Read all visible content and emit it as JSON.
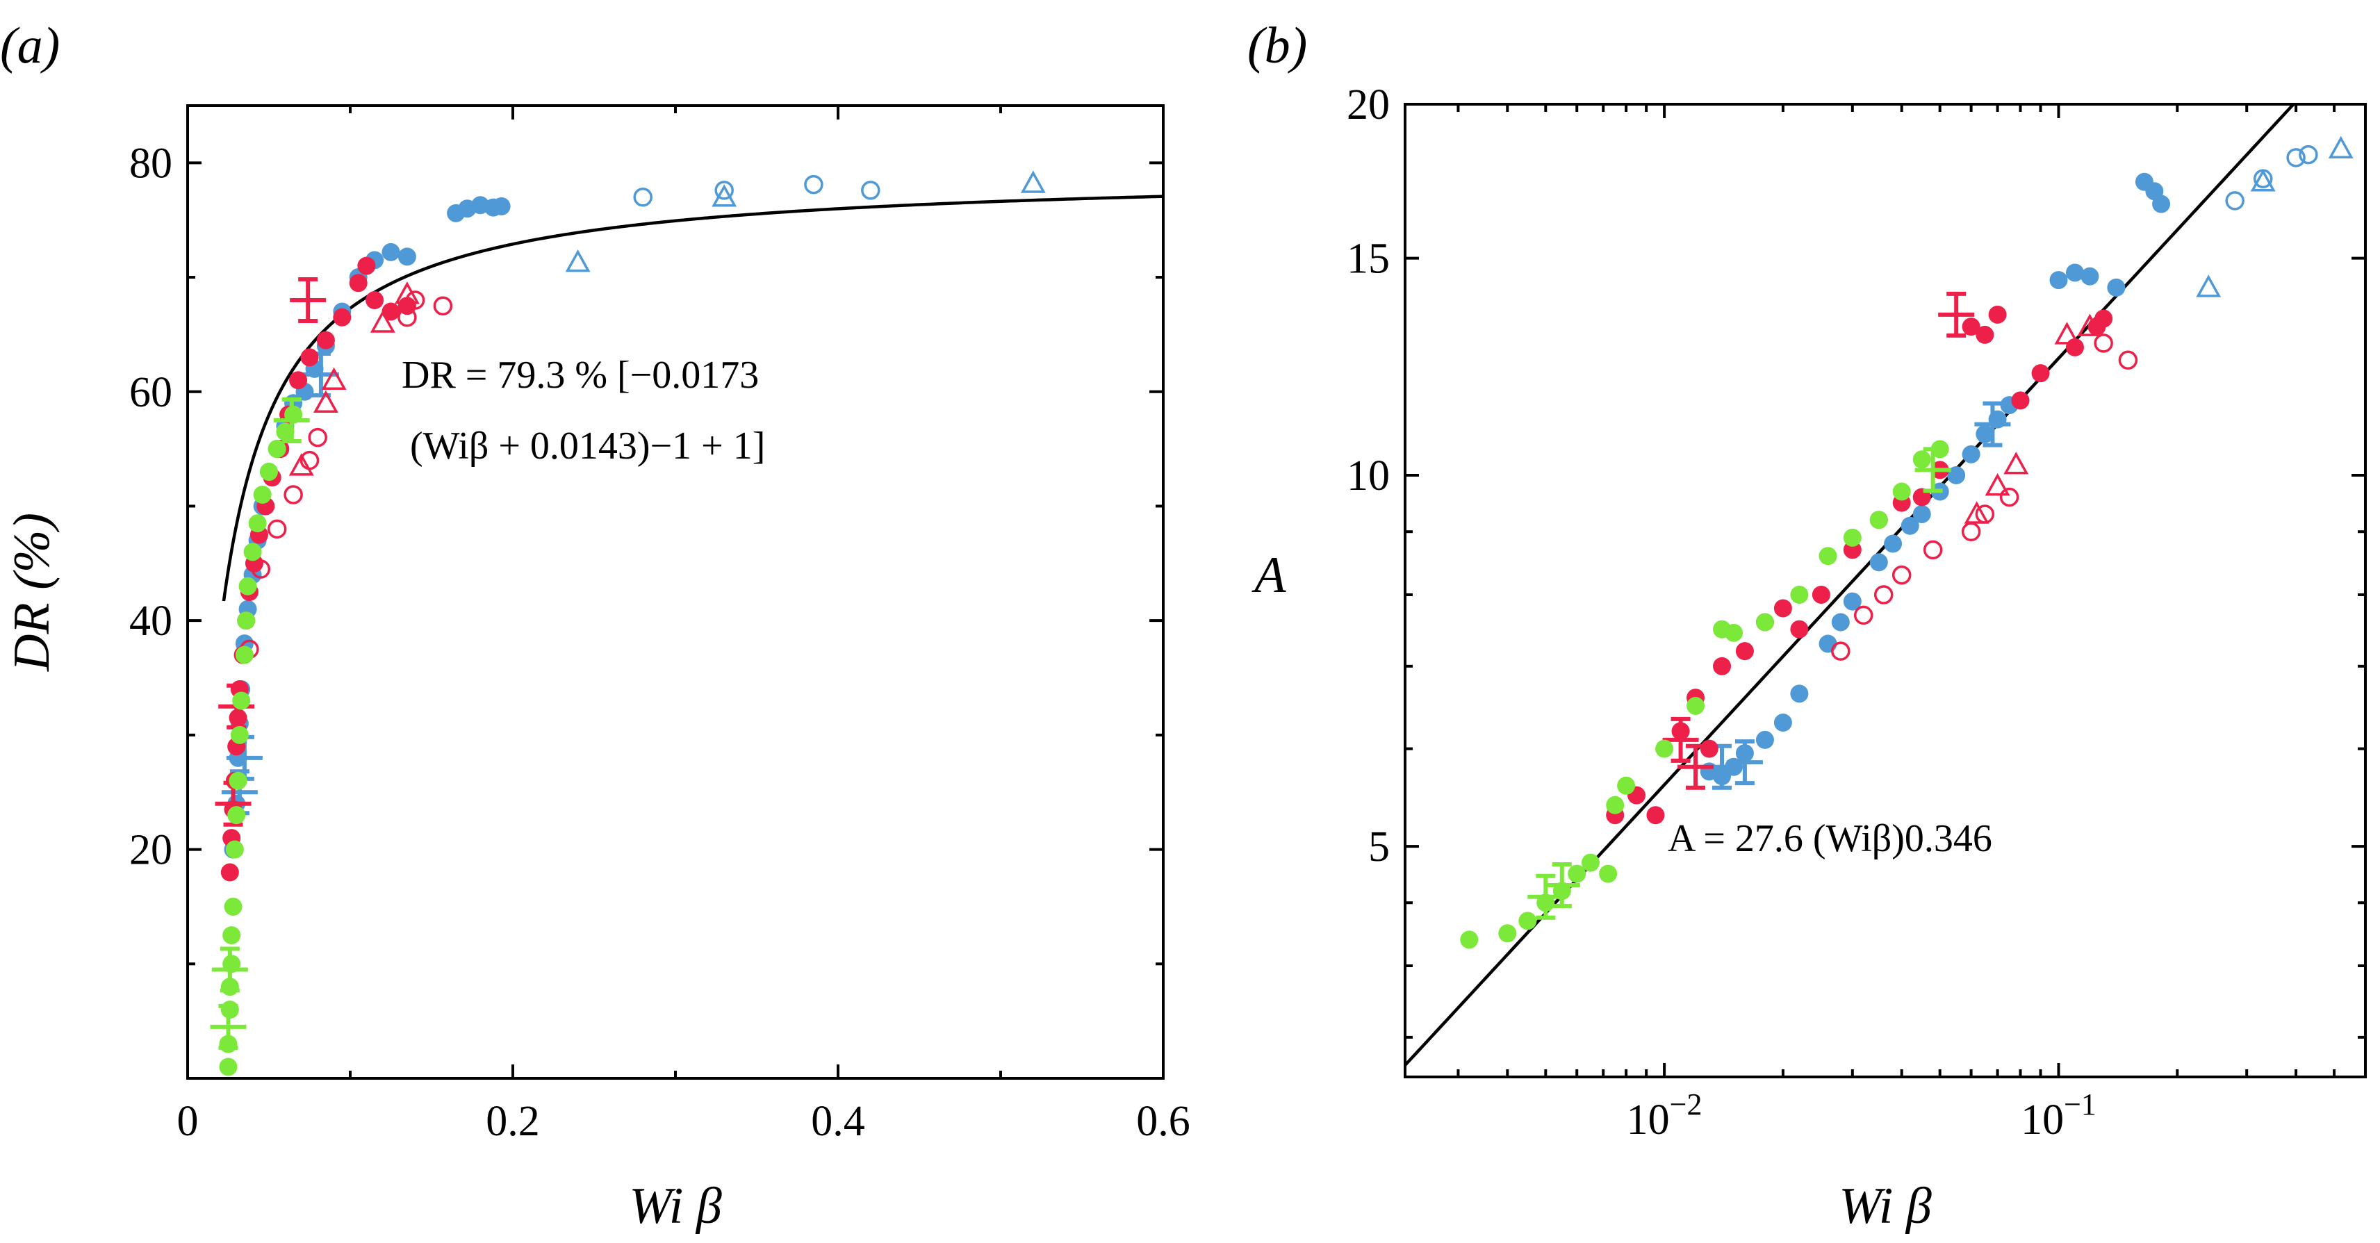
{
  "colors": {
    "blue": "#4f9ad6",
    "red": "#ec2049",
    "green": "#7be83a",
    "fit": "#000000"
  },
  "chart_data": [
    {
      "type": "scatter",
      "panel_label": "(a)",
      "xlabel": "Wi β",
      "ylabel": "DR (%)",
      "x_scale": "linear",
      "y_scale": "linear",
      "xlim": [
        0,
        0.6
      ],
      "ylim": [
        0,
        85
      ],
      "x_ticks": [
        0,
        0.2,
        0.4,
        0.6
      ],
      "x_tick_labels": [
        "0",
        "0.2",
        "0.4",
        "0.6"
      ],
      "y_ticks": [
        20,
        40,
        60,
        80
      ],
      "y_tick_labels": [
        "20",
        "40",
        "60",
        "80"
      ],
      "annotation": {
        "line1": "DR = 79.3 % [−0.0173",
        "line2": "(Wiβ + 0.0143)−1 + 1]"
      },
      "fit": {
        "formula": "DR = 79.3 [1 − 0.0173 / (Wiβ + 0.0143)]",
        "a": 79.3,
        "b": 0.0173,
        "c": 0.0143
      },
      "series": [
        {
          "color": "blue",
          "marker": "filled-circle",
          "points": [
            [
              0.028,
              20
            ],
            [
              0.03,
              24
            ],
            [
              0.031,
              28
            ],
            [
              0.032,
              31
            ],
            [
              0.033,
              34
            ],
            [
              0.035,
              38
            ],
            [
              0.037,
              41
            ],
            [
              0.04,
              44
            ],
            [
              0.043,
              47
            ],
            [
              0.046,
              50
            ],
            [
              0.05,
              53
            ],
            [
              0.055,
              55
            ],
            [
              0.06,
              57
            ],
            [
              0.065,
              59
            ],
            [
              0.072,
              60
            ],
            [
              0.078,
              62
            ],
            [
              0.085,
              64
            ],
            [
              0.095,
              67
            ],
            [
              0.105,
              70
            ],
            [
              0.115,
              71.5
            ],
            [
              0.125,
              72.2
            ],
            [
              0.135,
              71.8
            ],
            [
              0.165,
              75.6
            ],
            [
              0.172,
              76
            ],
            [
              0.18,
              76.3
            ],
            [
              0.188,
              76.1
            ],
            [
              0.193,
              76.2
            ]
          ]
        },
        {
          "color": "blue",
          "marker": "open-circle",
          "points": [
            [
              0.28,
              77
            ],
            [
              0.33,
              77.6
            ],
            [
              0.385,
              78.1
            ],
            [
              0.42,
              77.6
            ]
          ]
        },
        {
          "color": "blue",
          "marker": "open-triangle",
          "points": [
            [
              0.24,
              71.3
            ],
            [
              0.33,
              77
            ],
            [
              0.52,
              78.2
            ]
          ]
        },
        {
          "color": "blue",
          "marker": "error-cross",
          "points": [
            [
              0.032,
              25
            ],
            [
              0.035,
              28
            ],
            [
              0.082,
              61.5
            ]
          ]
        },
        {
          "color": "red",
          "marker": "filled-circle",
          "points": [
            [
              0.026,
              18
            ],
            [
              0.027,
              21
            ],
            [
              0.028,
              23.5
            ],
            [
              0.029,
              26
            ],
            [
              0.03,
              29
            ],
            [
              0.031,
              31.5
            ],
            [
              0.032,
              34
            ],
            [
              0.034,
              37
            ],
            [
              0.036,
              40
            ],
            [
              0.038,
              42.5
            ],
            [
              0.041,
              45
            ],
            [
              0.044,
              47.5
            ],
            [
              0.048,
              50
            ],
            [
              0.052,
              52.5
            ],
            [
              0.057,
              55
            ],
            [
              0.062,
              58
            ],
            [
              0.068,
              61
            ],
            [
              0.075,
              63
            ],
            [
              0.085,
              64.5
            ],
            [
              0.095,
              66.5
            ],
            [
              0.105,
              69.5
            ],
            [
              0.11,
              71
            ],
            [
              0.115,
              68
            ],
            [
              0.125,
              67
            ],
            [
              0.135,
              67.5
            ]
          ]
        },
        {
          "color": "red",
          "marker": "open-circle",
          "points": [
            [
              0.038,
              37.5
            ],
            [
              0.045,
              44.5
            ],
            [
              0.055,
              48
            ],
            [
              0.065,
              51
            ],
            [
              0.075,
              54
            ],
            [
              0.08,
              56
            ],
            [
              0.135,
              66.5
            ],
            [
              0.14,
              68
            ],
            [
              0.157,
              67.5
            ]
          ]
        },
        {
          "color": "red",
          "marker": "open-triangle",
          "points": [
            [
              0.07,
              53.5
            ],
            [
              0.085,
              59
            ],
            [
              0.09,
              61
            ],
            [
              0.12,
              66
            ],
            [
              0.135,
              68.5
            ]
          ]
        },
        {
          "color": "red",
          "marker": "error-cross",
          "points": [
            [
              0.028,
              24
            ],
            [
              0.03,
              32.5
            ],
            [
              0.074,
              68
            ]
          ]
        },
        {
          "color": "green",
          "marker": "filled-circle",
          "points": [
            [
              0.025,
              1
            ],
            [
              0.025,
              3
            ],
            [
              0.026,
              6
            ],
            [
              0.026,
              8
            ],
            [
              0.027,
              10
            ],
            [
              0.027,
              12.5
            ],
            [
              0.028,
              15
            ],
            [
              0.029,
              20
            ],
            [
              0.03,
              23
            ],
            [
              0.031,
              26
            ],
            [
              0.032,
              30
            ],
            [
              0.033,
              33
            ],
            [
              0.035,
              37
            ],
            [
              0.036,
              40
            ],
            [
              0.037,
              43
            ],
            [
              0.04,
              46
            ],
            [
              0.043,
              48.5
            ],
            [
              0.046,
              51
            ],
            [
              0.05,
              53
            ],
            [
              0.055,
              55
            ],
            [
              0.06,
              56.5
            ],
            [
              0.065,
              58
            ]
          ]
        },
        {
          "color": "green",
          "marker": "error-cross",
          "points": [
            [
              0.025,
              4.5
            ],
            [
              0.026,
              9.5
            ],
            [
              0.064,
              57.5
            ]
          ]
        }
      ]
    },
    {
      "type": "scatter",
      "panel_label": "(b)",
      "xlabel": "Wi β",
      "ylabel": "A",
      "x_scale": "log",
      "y_scale": "log",
      "xlim": [
        0.0022,
        0.6
      ],
      "ylim": [
        3.25,
        20
      ],
      "x_ticks": [
        0.01,
        0.1
      ],
      "x_tick_labels": [
        "10−2",
        "10−1"
      ],
      "y_ticks": [
        5,
        10,
        15,
        20
      ],
      "y_tick_labels": [
        "5",
        "10",
        "15",
        "20"
      ],
      "annotation": {
        "text": "A = 27.6 (Wiβ)0.346"
      },
      "fit": {
        "formula": "A = 27.6 (Wiβ)^0.346",
        "a": 27.6,
        "b": 0.346
      },
      "series": [
        {
          "color": "blue",
          "marker": "filled-circle",
          "points": [
            [
              0.013,
              5.75
            ],
            [
              0.014,
              5.7
            ],
            [
              0.015,
              5.8
            ],
            [
              0.016,
              5.95
            ],
            [
              0.018,
              6.1
            ],
            [
              0.02,
              6.3
            ],
            [
              0.022,
              6.65
            ],
            [
              0.026,
              7.3
            ],
            [
              0.028,
              7.6
            ],
            [
              0.03,
              7.9
            ],
            [
              0.035,
              8.5
            ],
            [
              0.038,
              8.8
            ],
            [
              0.042,
              9.1
            ],
            [
              0.045,
              9.3
            ],
            [
              0.05,
              9.7
            ],
            [
              0.055,
              10.0
            ],
            [
              0.06,
              10.4
            ],
            [
              0.065,
              10.8
            ],
            [
              0.07,
              11.1
            ],
            [
              0.075,
              11.4
            ],
            [
              0.1,
              14.4
            ],
            [
              0.11,
              14.6
            ],
            [
              0.12,
              14.5
            ],
            [
              0.14,
              14.2
            ],
            [
              0.165,
              17.3
            ],
            [
              0.175,
              17.0
            ],
            [
              0.182,
              16.6
            ]
          ]
        },
        {
          "color": "blue",
          "marker": "open-circle",
          "points": [
            [
              0.28,
              16.7
            ],
            [
              0.33,
              17.4
            ],
            [
              0.4,
              18.1
            ],
            [
              0.43,
              18.2
            ]
          ]
        },
        {
          "color": "blue",
          "marker": "open-triangle",
          "points": [
            [
              0.24,
              14.2
            ],
            [
              0.33,
              17.3
            ],
            [
              0.52,
              18.4
            ]
          ]
        },
        {
          "color": "blue",
          "marker": "error-cross",
          "points": [
            [
              0.014,
              5.8
            ],
            [
              0.016,
              5.85
            ],
            [
              0.068,
              11.0
            ]
          ]
        },
        {
          "color": "red",
          "marker": "filled-circle",
          "points": [
            [
              0.0075,
              5.3
            ],
            [
              0.0085,
              5.5
            ],
            [
              0.0095,
              5.3
            ],
            [
              0.011,
              6.2
            ],
            [
              0.012,
              6.6
            ],
            [
              0.013,
              6.0
            ],
            [
              0.014,
              7.0
            ],
            [
              0.016,
              7.2
            ],
            [
              0.018,
              7.6
            ],
            [
              0.02,
              7.8
            ],
            [
              0.022,
              7.5
            ],
            [
              0.025,
              8.0
            ],
            [
              0.03,
              8.7
            ],
            [
              0.035,
              9.2
            ],
            [
              0.04,
              9.5
            ],
            [
              0.045,
              9.6
            ],
            [
              0.05,
              10.1
            ],
            [
              0.06,
              13.2
            ],
            [
              0.065,
              13.0
            ],
            [
              0.07,
              13.5
            ],
            [
              0.08,
              11.5
            ],
            [
              0.09,
              12.1
            ],
            [
              0.11,
              12.7
            ],
            [
              0.125,
              13.2
            ],
            [
              0.13,
              13.4
            ]
          ]
        },
        {
          "color": "red",
          "marker": "open-circle",
          "points": [
            [
              0.028,
              7.2
            ],
            [
              0.032,
              7.7
            ],
            [
              0.036,
              8.0
            ],
            [
              0.04,
              8.3
            ],
            [
              0.048,
              8.7
            ],
            [
              0.06,
              9.0
            ],
            [
              0.065,
              9.3
            ],
            [
              0.075,
              9.6
            ],
            [
              0.13,
              12.8
            ],
            [
              0.15,
              12.4
            ]
          ]
        },
        {
          "color": "red",
          "marker": "open-triangle",
          "points": [
            [
              0.062,
              9.3
            ],
            [
              0.07,
              9.8
            ],
            [
              0.078,
              10.2
            ],
            [
              0.105,
              13.0
            ],
            [
              0.12,
              13.2
            ]
          ]
        },
        {
          "color": "red",
          "marker": "error-cross",
          "points": [
            [
              0.011,
              6.1
            ],
            [
              0.012,
              5.8
            ],
            [
              0.055,
              13.5
            ]
          ]
        },
        {
          "color": "green",
          "marker": "filled-circle",
          "points": [
            [
              0.0032,
              4.2
            ],
            [
              0.004,
              4.25
            ],
            [
              0.0045,
              4.35
            ],
            [
              0.005,
              4.5
            ],
            [
              0.0055,
              4.6
            ],
            [
              0.006,
              4.75
            ],
            [
              0.0065,
              4.85
            ],
            [
              0.0072,
              4.75
            ],
            [
              0.0075,
              5.4
            ],
            [
              0.008,
              5.6
            ],
            [
              0.01,
              6.0
            ],
            [
              0.012,
              6.5
            ],
            [
              0.014,
              7.5
            ],
            [
              0.015,
              7.45
            ],
            [
              0.018,
              7.6
            ],
            [
              0.022,
              8.0
            ],
            [
              0.026,
              8.6
            ],
            [
              0.03,
              8.9
            ],
            [
              0.035,
              9.2
            ],
            [
              0.04,
              9.7
            ],
            [
              0.045,
              10.3
            ],
            [
              0.05,
              10.5
            ]
          ]
        },
        {
          "color": "green",
          "marker": "error-cross",
          "points": [
            [
              0.005,
              4.55
            ],
            [
              0.0055,
              4.65
            ],
            [
              0.048,
              10.1
            ]
          ]
        }
      ]
    }
  ]
}
